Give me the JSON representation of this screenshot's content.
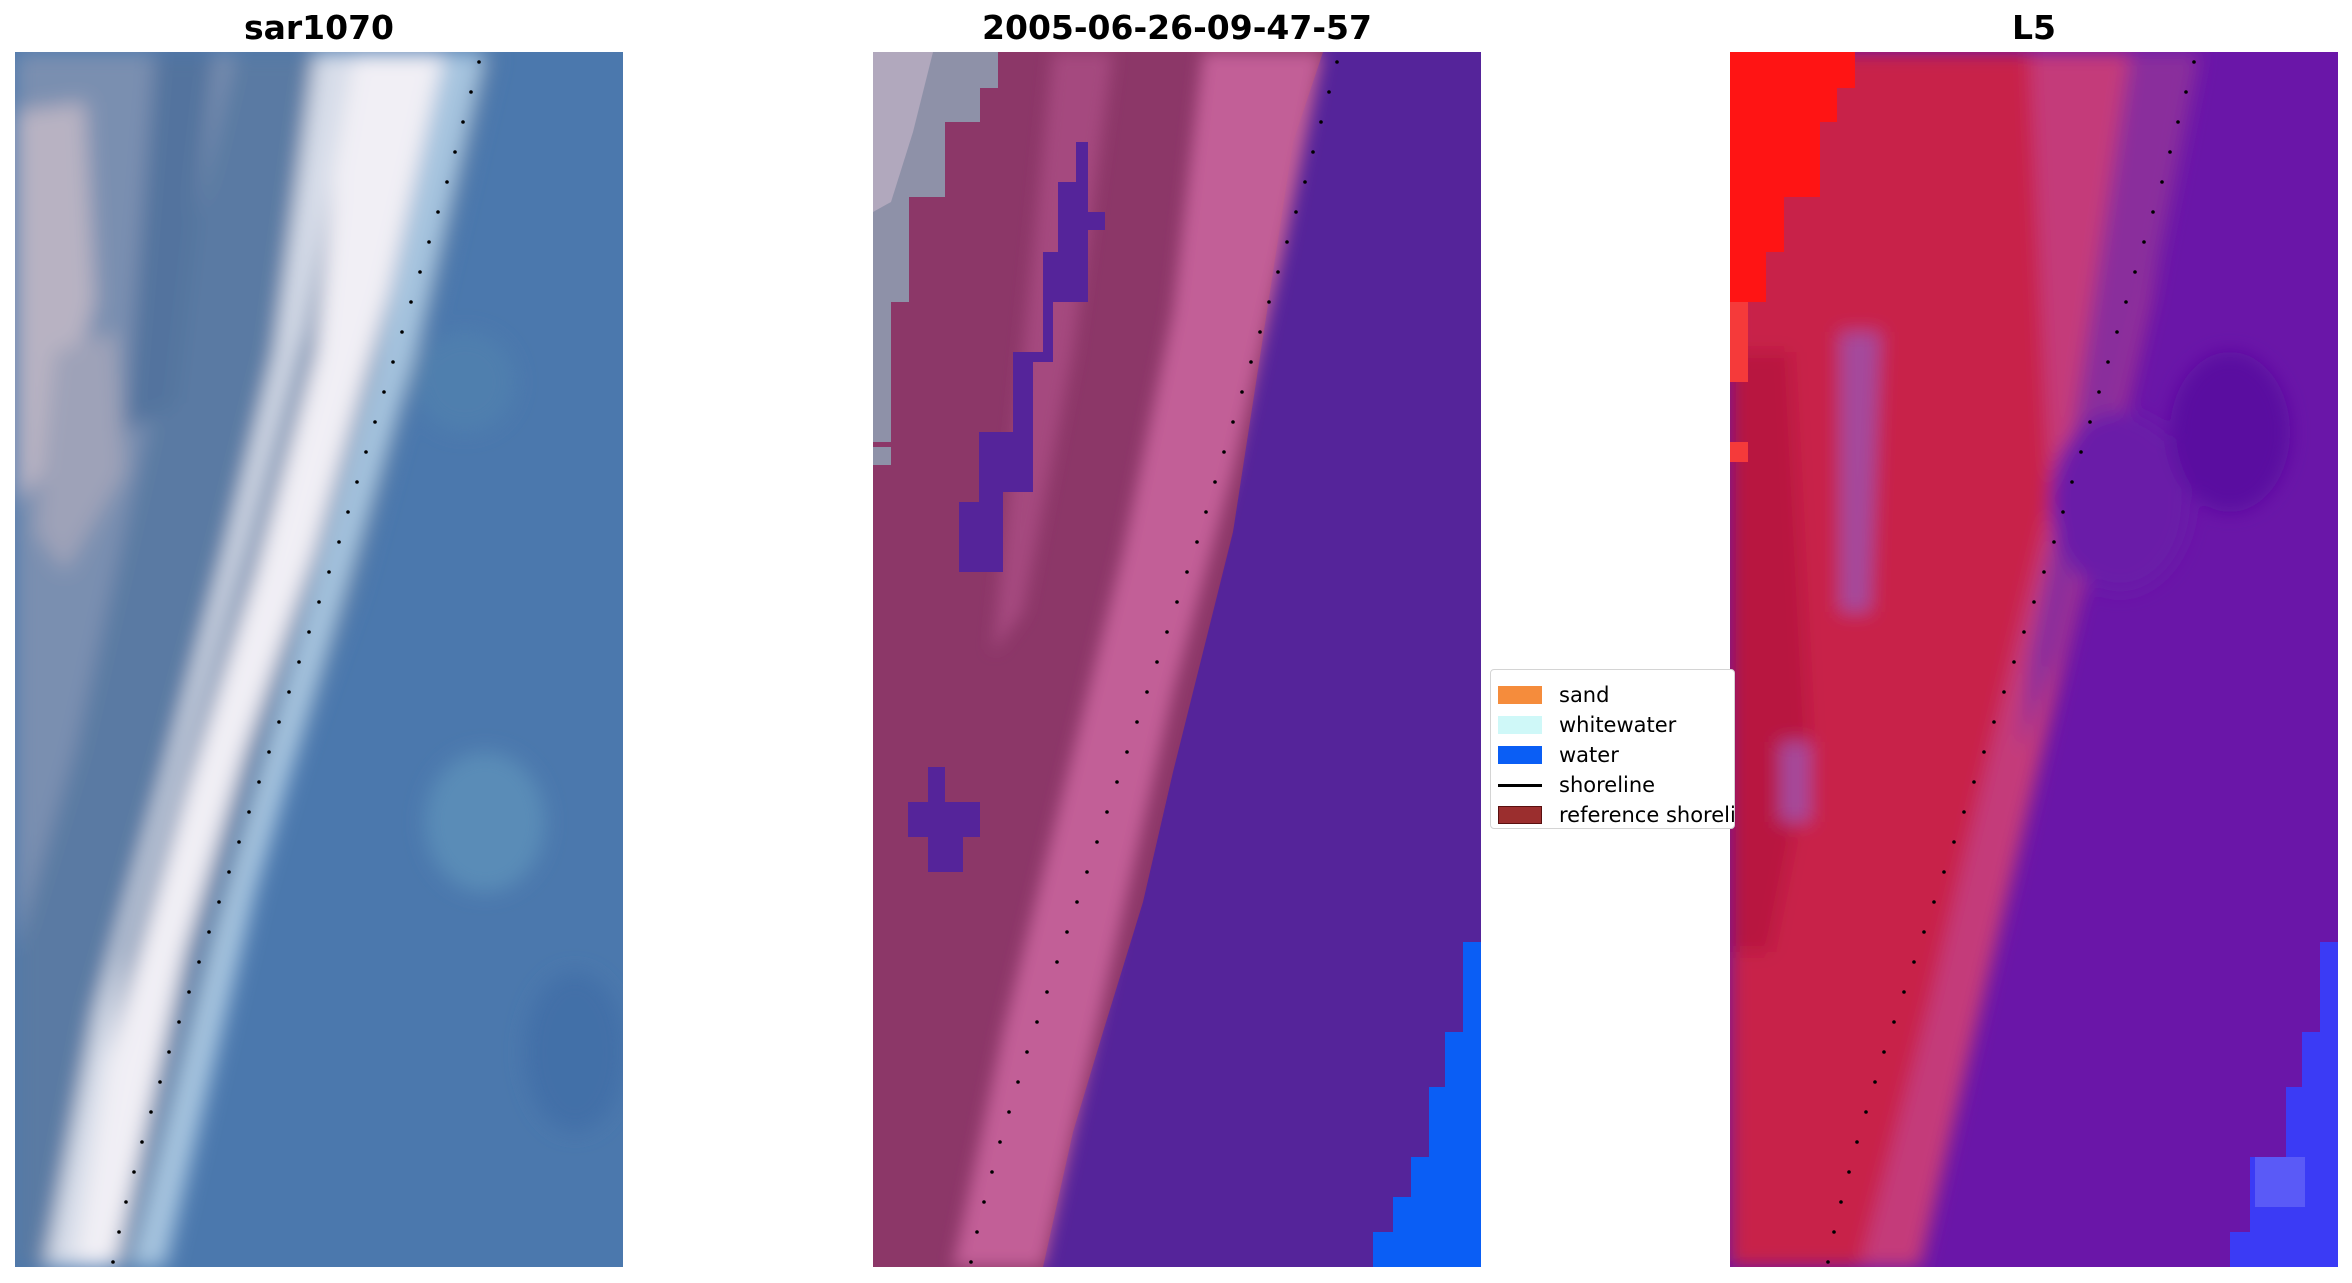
{
  "figure": {
    "panels": [
      {
        "title": "sar1070",
        "kind": "rgb-image"
      },
      {
        "title": "2005-06-26-09-47-57",
        "kind": "classified-image"
      },
      {
        "title": "L5",
        "kind": "index-image"
      }
    ],
    "legend": {
      "items": [
        {
          "label": "sand",
          "color": "#f58c3c",
          "type": "patch"
        },
        {
          "label": "whitewater",
          "color": "#cff8f8",
          "type": "patch"
        },
        {
          "label": "water",
          "color": "#0a5ef5",
          "type": "patch"
        },
        {
          "label": "shoreline",
          "color": "#000000",
          "type": "line"
        },
        {
          "label": "reference shoreline",
          "color": "#9b2e2e",
          "type": "patch"
        }
      ]
    },
    "colors": {
      "ocean_blue": "#4d7fb3",
      "surf_white": "#f2f2f6",
      "dune_gray": "#8a8fa8",
      "class_purple": "#55249a",
      "class_pink": "#c25e97",
      "class_maroon": "#8c3768",
      "class_water": "#0a5ef5",
      "index_red": "#c8204a",
      "index_bright_red": "#ff1414",
      "index_violet": "#6a16a8",
      "index_blue": "#3b3bf5",
      "shoreline_dots": "#000000"
    }
  }
}
